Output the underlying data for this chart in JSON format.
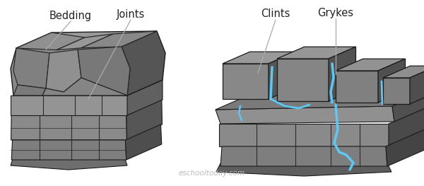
{
  "bg_color": "#ffffff",
  "labels": {
    "bedding": "Bedding",
    "joints": "Joints",
    "clints": "Clints",
    "grykes": "Grykes"
  },
  "colors": {
    "front_light": "#a0a0a0",
    "front_mid": "#888888",
    "front_dark": "#555555",
    "side_dark": "#383838",
    "top_light": "#909090",
    "top_dark": "#666666",
    "crack": "#2a2a2a",
    "outline": "#1a1a1a",
    "blue": "#5bc8f5",
    "white": "#ffffff"
  },
  "watermark": "eschooltoday.com",
  "font": "DejaVu Sans"
}
